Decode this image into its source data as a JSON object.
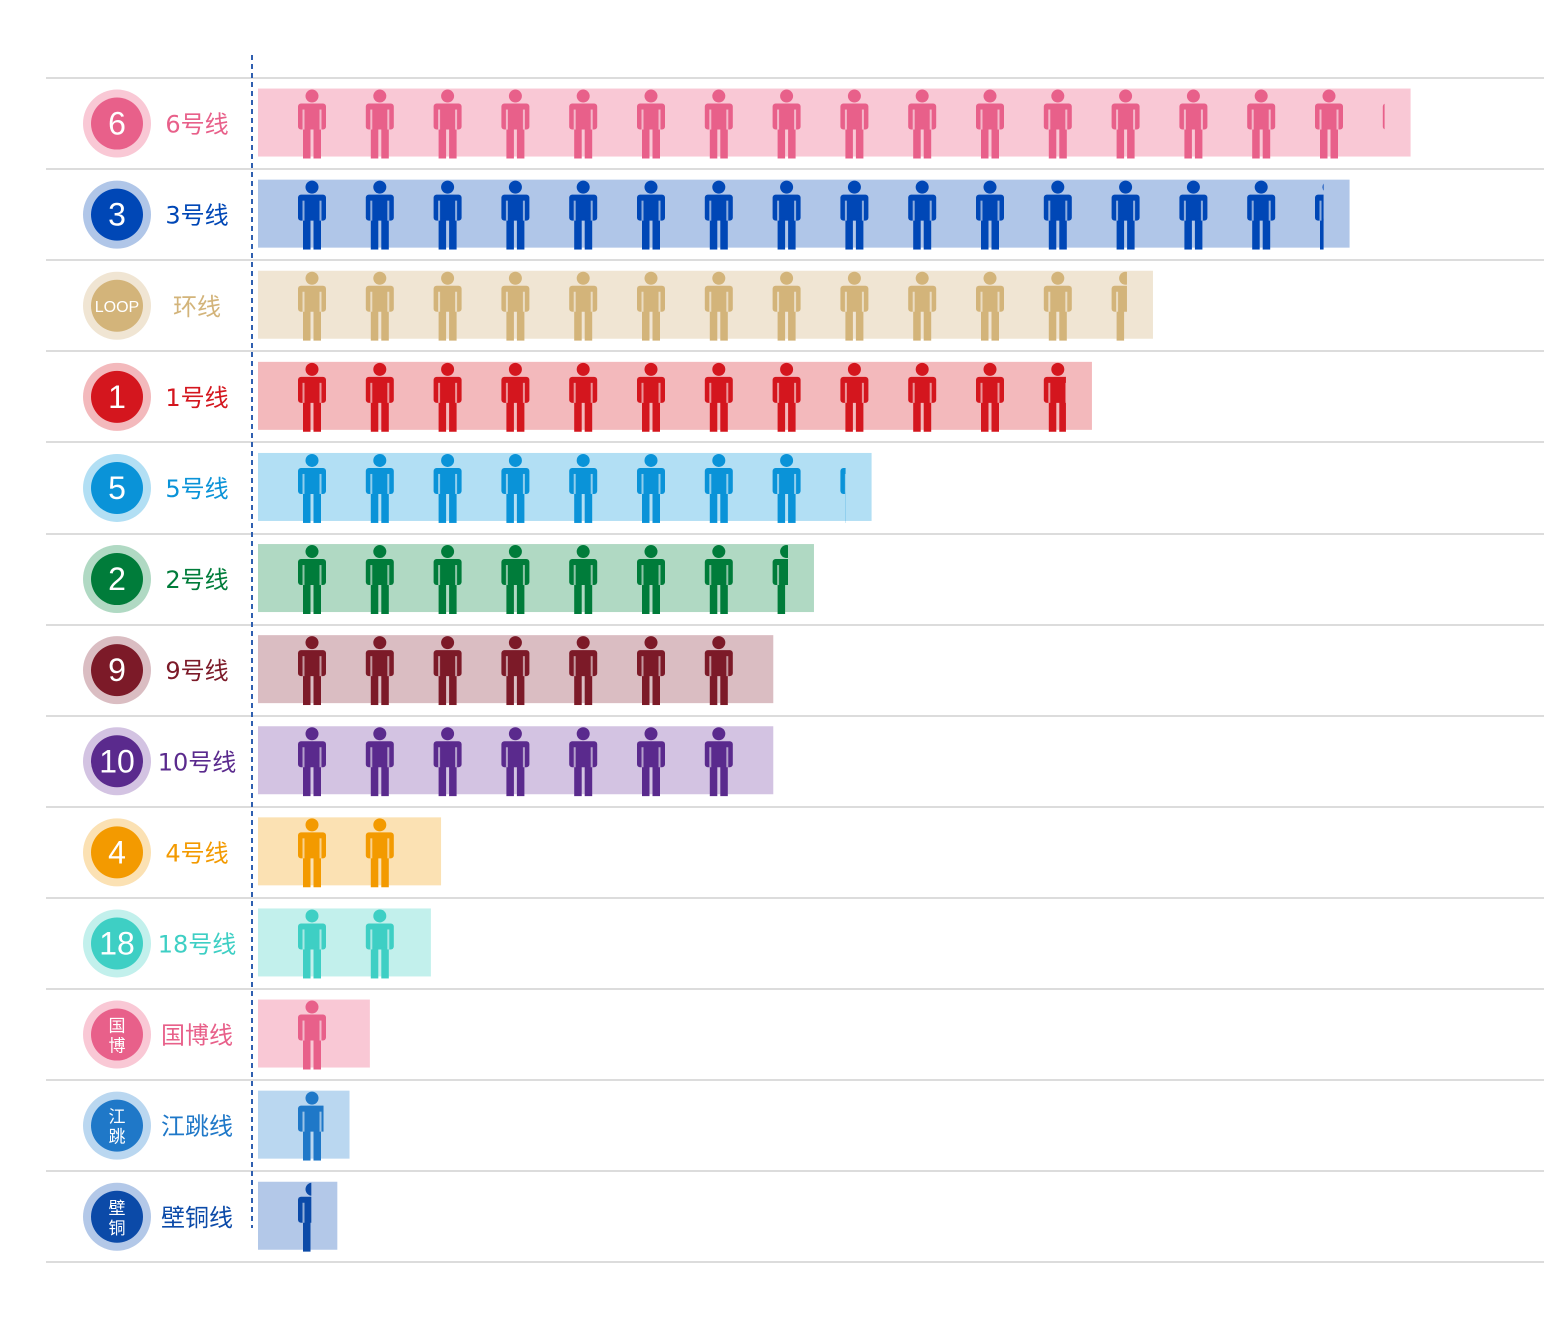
{
  "chart_data": {
    "type": "bar",
    "unit_per_icon": 1,
    "categories": [
      {
        "badge": "6",
        "name": "6号线",
        "value": 17.0,
        "color": "#e8608a",
        "light": "#f9c8d5"
      },
      {
        "badge": "3",
        "name": "3号线",
        "value": 16.1,
        "color": "#0047b6",
        "light": "#b0c6e8"
      },
      {
        "badge": "LOOP",
        "name": "环线",
        "value": 13.2,
        "color": "#d3b47a",
        "light": "#f0e5d3"
      },
      {
        "badge": "1",
        "name": "1号线",
        "value": 12.3,
        "color": "#d4161e",
        "light": "#f3b9bc"
      },
      {
        "badge": "5",
        "name": "5号线",
        "value": 9.05,
        "color": "#0a93d8",
        "light": "#b2dff4"
      },
      {
        "badge": "2",
        "name": "2号线",
        "value": 8.2,
        "color": "#007c3a",
        "light": "#b0d9c3"
      },
      {
        "badge": "9",
        "name": "9号线",
        "value": 7.6,
        "color": "#7c1a28",
        "light": "#dabdc2"
      },
      {
        "badge": "10",
        "name": "10号线",
        "value": 7.6,
        "color": "#5a2a8d",
        "light": "#d3c3e2"
      },
      {
        "badge": "4",
        "name": "4号线",
        "value": 2.7,
        "color": "#f39a00",
        "light": "#fbe1b3"
      },
      {
        "badge": "18",
        "name": "18号线",
        "value": 2.55,
        "color": "#3ecfc4",
        "light": "#c2f0ec"
      },
      {
        "badge": "国\n博",
        "name": "国博线",
        "value": 1.65,
        "color": "#e8608a",
        "light": "#f9c8d5"
      },
      {
        "badge": "江\n跳",
        "name": "江跳线",
        "value": 1.35,
        "color": "#1f78c8",
        "light": "#bad7f0"
      },
      {
        "badge": "壁\n铜",
        "name": "壁铜线",
        "value": 1.17,
        "color": "#0b4aa8",
        "light": "#b3c8e8"
      }
    ],
    "grid": true
  }
}
